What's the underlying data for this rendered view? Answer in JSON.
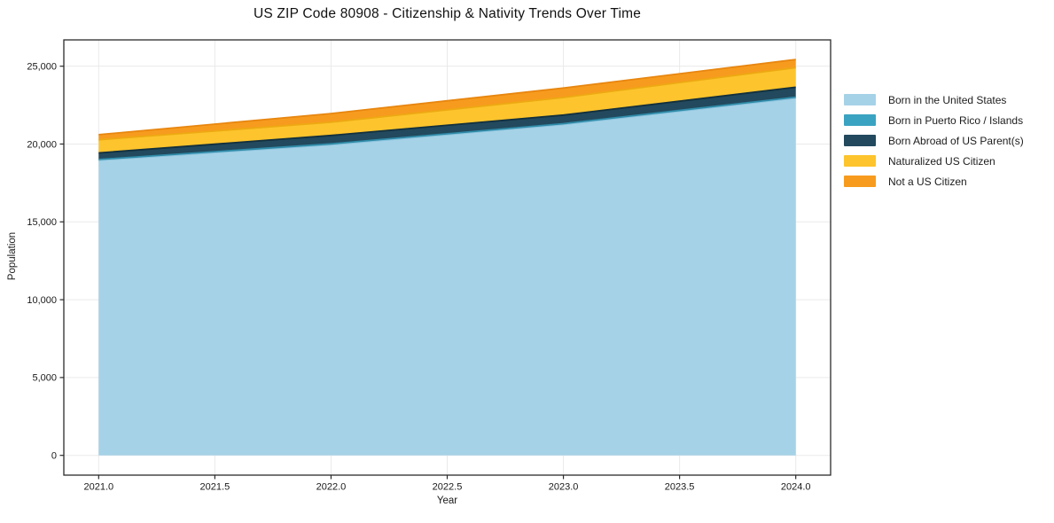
{
  "figure": {
    "title": "US ZIP Code 80908 - Citizenship & Nativity Trends Over Time",
    "xlabel": "Year",
    "ylabel": "Population"
  },
  "legend": {
    "position": "right-outside",
    "items": [
      {
        "label": "Born in the United States",
        "color": "#a6d2e7"
      },
      {
        "label": "Born in Puerto Rico / Islands",
        "color": "#3ba3c2"
      },
      {
        "label": "Born Abroad of US Parent(s)",
        "color": "#22495d"
      },
      {
        "label": "Naturalized US Citizen",
        "color": "#fdc42d"
      },
      {
        "label": "Not a US Citizen",
        "color": "#f79b1e"
      }
    ]
  },
  "chart_data": {
    "type": "area",
    "stacked": true,
    "title": "US ZIP Code 80908 - Citizenship & Nativity Trends Over Time",
    "xlabel": "Year",
    "ylabel": "Population",
    "x": [
      2021,
      2022,
      2023,
      2024
    ],
    "series": [
      {
        "name": "Born in the United States",
        "values": [
          18950,
          19950,
          21250,
          22950
        ],
        "fill": "#a6d2e7",
        "line": "#8cc4de"
      },
      {
        "name": "Born in Puerto Rico / Islands",
        "values": [
          60,
          60,
          60,
          60
        ],
        "fill": "#3ba3c2",
        "line": "#2f8ba8"
      },
      {
        "name": "Born Abroad of US Parent(s)",
        "values": [
          420,
          540,
          550,
          640
        ],
        "fill": "#22495d",
        "line": "#12303f"
      },
      {
        "name": "Naturalized US Citizen",
        "values": [
          840,
          850,
          1130,
          1260
        ],
        "fill": "#fdc42d",
        "line": "#eda912"
      },
      {
        "name": "Not a US Citizen",
        "values": [
          330,
          560,
          610,
          520
        ],
        "fill": "#f79b1e",
        "line": "#e8860f"
      }
    ],
    "totals": [
      20600,
      21960,
      23600,
      25430
    ],
    "xlim": [
      2020.85,
      2024.15
    ],
    "ylim": [
      -1270,
      26690
    ],
    "xticks": [
      2021.0,
      2021.5,
      2022.0,
      2022.5,
      2023.0,
      2023.5,
      2024.0
    ],
    "xtick_labels": [
      "2021.0",
      "2021.5",
      "2022.0",
      "2022.5",
      "2023.0",
      "2023.5",
      "2024.0"
    ],
    "yticks": [
      0,
      5000,
      10000,
      15000,
      20000,
      25000
    ],
    "ytick_labels": [
      "0",
      "5,000",
      "10,000",
      "15,000",
      "20,000",
      "25,000"
    ],
    "grid": true,
    "legend_position": "right"
  },
  "colors": {
    "background": "#ffffff",
    "grid": "#eaeaea",
    "spine": "#2b2b2b",
    "tick_label": "#1a1a1a"
  }
}
